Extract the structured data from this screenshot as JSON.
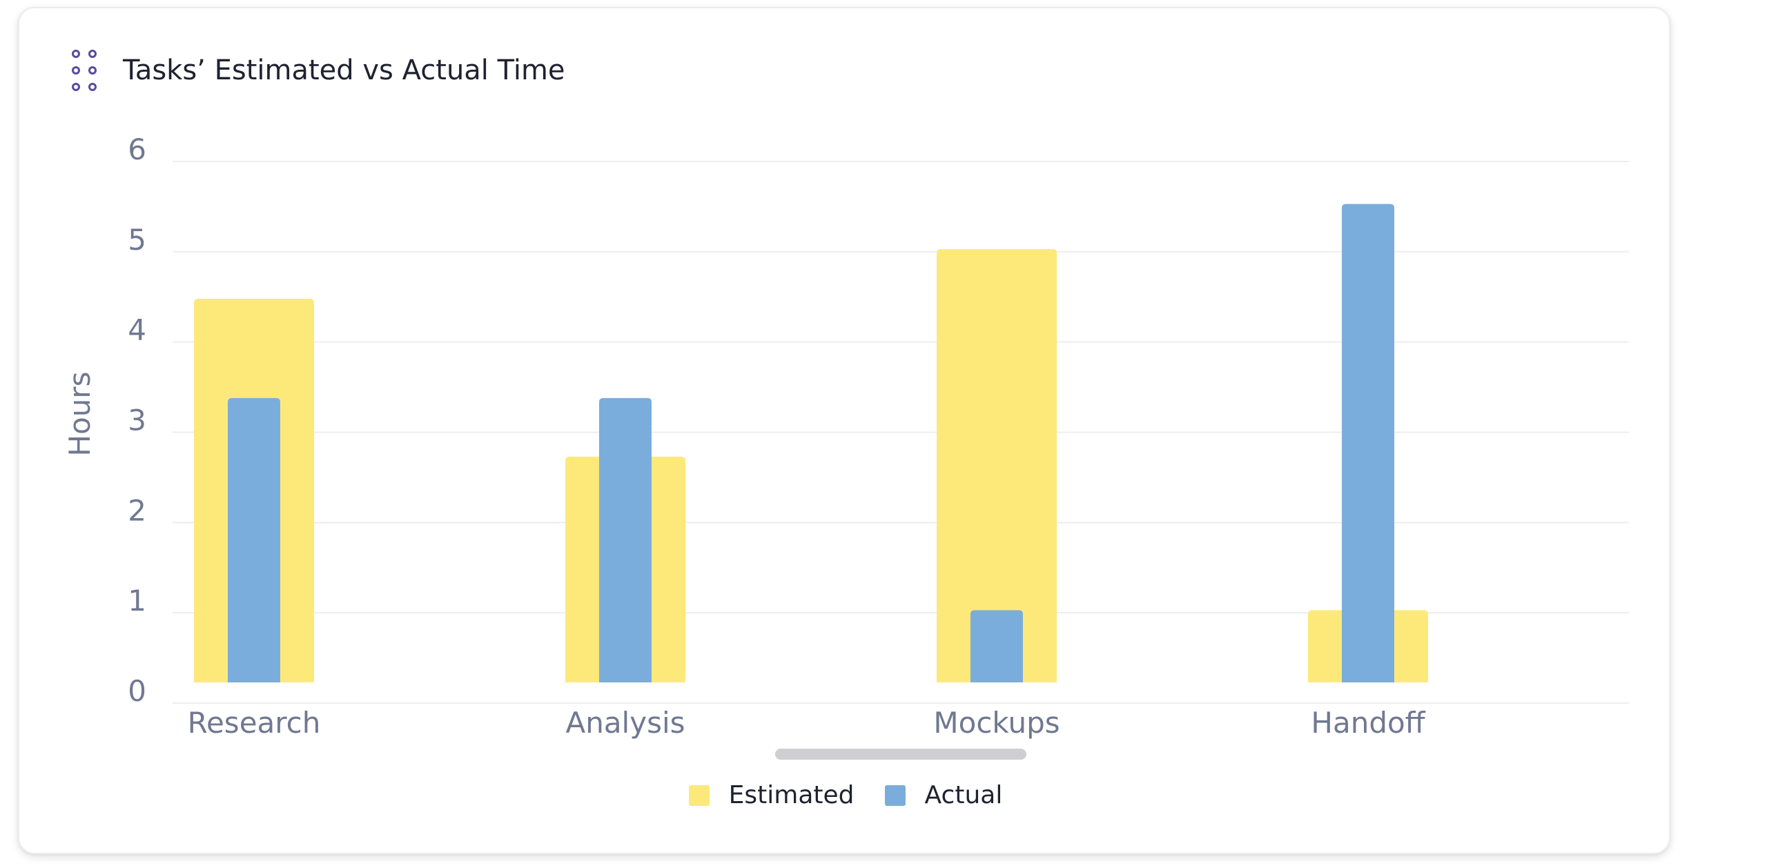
{
  "card": {
    "title": "Tasks’ Estimated vs Actual Time"
  },
  "colors": {
    "estimated": "#fde97a",
    "actual": "#7aaddb",
    "axis_text": "#707891",
    "grid": "#eceef2",
    "handle": "#5a4aa0"
  },
  "chart_data": {
    "type": "bar",
    "title": "Tasks’ Estimated vs Actual Time",
    "xlabel": "",
    "ylabel": "Hours",
    "ylim": [
      0,
      6
    ],
    "yticks": [
      0,
      1,
      2,
      3,
      4,
      5,
      6
    ],
    "grid": true,
    "legend": "bottom-center",
    "categories": [
      "Research",
      "Analysis",
      "Mockups",
      "Handoff"
    ],
    "series": [
      {
        "name": "Estimated",
        "values": [
          4.25,
          2.5,
          4.8,
          0.8
        ],
        "color": "#fde97a"
      },
      {
        "name": "Actual",
        "values": [
          3.15,
          3.15,
          0.8,
          5.3
        ],
        "color": "#7aaddb"
      }
    ]
  },
  "legend": {
    "items": [
      {
        "label": "Estimated",
        "color": "#fde97a"
      },
      {
        "label": "Actual",
        "color": "#7aaddb"
      }
    ]
  }
}
